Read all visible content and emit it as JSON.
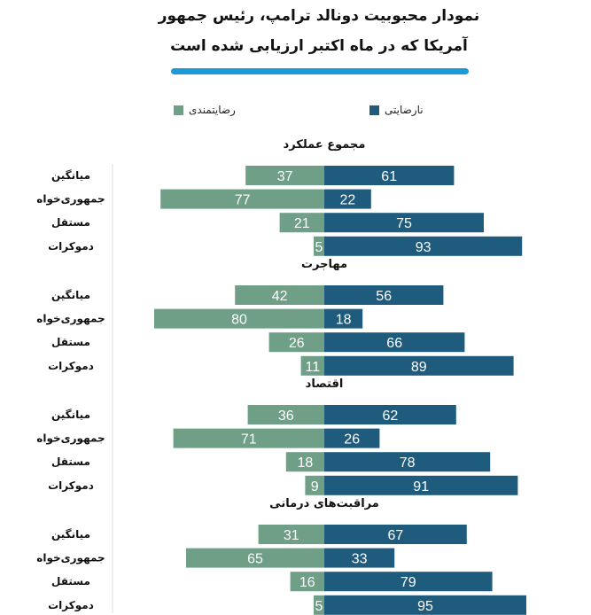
{
  "chart_data": {
    "type": "bar",
    "orientation": "horizontal-diverging",
    "title": [
      "نمودار محبوبیت دونالد ترامپ، رئیس جمهور",
      "آمریکا که در ماه اکتبر ارزیابی شده است"
    ],
    "legend": [
      {
        "name": "نارضایتی",
        "color": "#1e5b7c"
      },
      {
        "name": "رضایتمندی",
        "color": "#6f9f87"
      }
    ],
    "legend_position": "top",
    "categories": [
      "میانگین",
      "جمهوری‌خواه",
      "مستقل",
      "دموکرات"
    ],
    "groups": [
      {
        "name": "مجموع عملکرد",
        "approve": [
          37,
          77,
          21,
          5
        ],
        "disapprove": [
          61,
          22,
          75,
          93
        ]
      },
      {
        "name": "مهاجرت",
        "approve": [
          42,
          80,
          26,
          11
        ],
        "disapprove": [
          56,
          18,
          66,
          89
        ]
      },
      {
        "name": "اقتصاد",
        "approve": [
          36,
          71,
          18,
          9
        ],
        "disapprove": [
          62,
          26,
          78,
          91
        ]
      },
      {
        "name": "مراقبت‌های درمانی",
        "approve": [
          31,
          65,
          16,
          5
        ],
        "disapprove": [
          67,
          33,
          79,
          95
        ]
      }
    ]
  }
}
